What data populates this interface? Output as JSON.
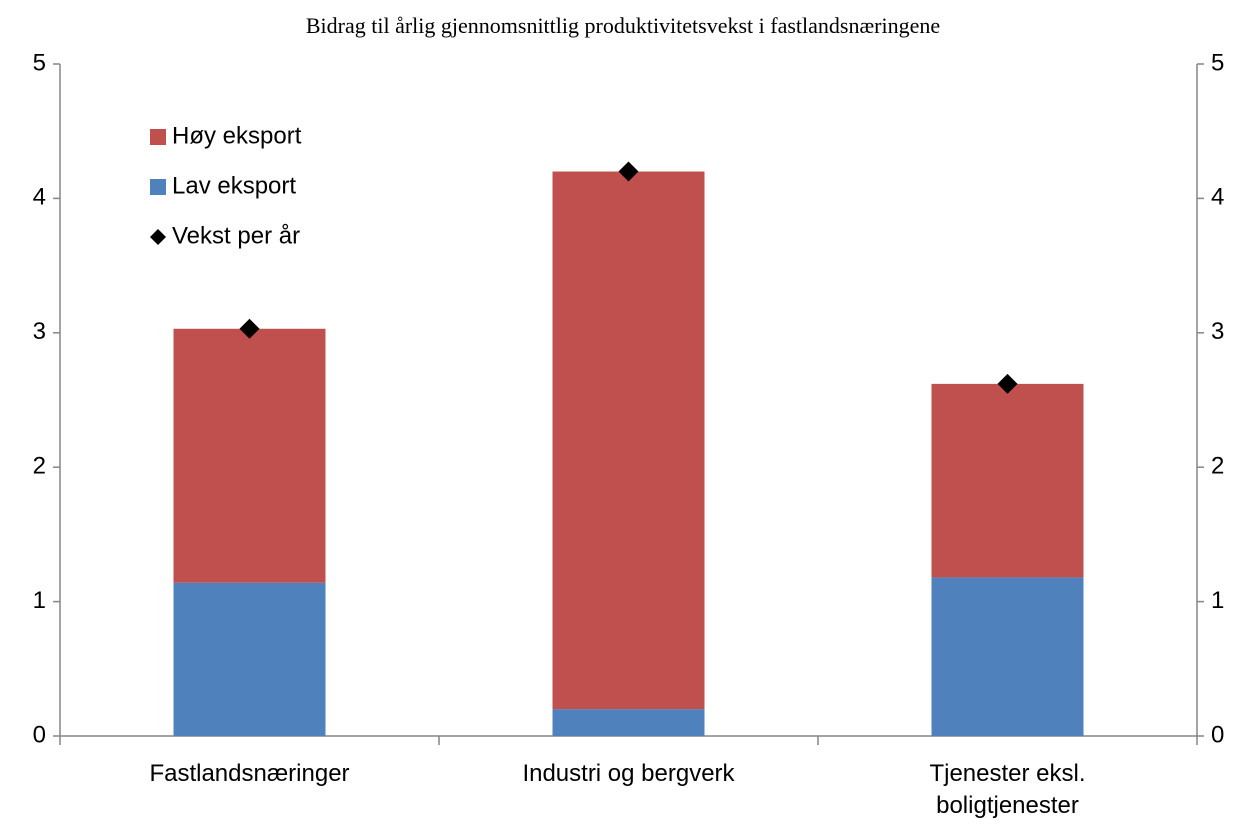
{
  "chart_data": {
    "type": "bar",
    "stacked": true,
    "title": "Bidrag til årlig gjennomsnittlig produktivitetsvekst i fastlandsnæringene",
    "categories": [
      "Fastlandsnæringer",
      "Industri og bergverk",
      "Tjenester eksl. boligtjenester"
    ],
    "series": [
      {
        "name": "Høy eksport",
        "color": "#c0504d",
        "values": [
          1.89,
          4.0,
          1.44
        ]
      },
      {
        "name": "Lav eksport",
        "color": "#4f81bd",
        "values": [
          1.14,
          0.2,
          1.18
        ]
      },
      {
        "name": "Vekst per år",
        "type": "scatter",
        "marker": "diamond",
        "color": "#000000",
        "values": [
          3.03,
          4.2,
          2.62
        ]
      }
    ],
    "stack_order": [
      1,
      0
    ],
    "ylim": [
      0,
      5
    ],
    "yticks": [
      0,
      1,
      2,
      3,
      4,
      5
    ],
    "y2lim": [
      0,
      5
    ],
    "y2ticks": [
      0,
      1,
      2,
      3,
      4,
      5
    ],
    "grid": false,
    "legend": "upper left"
  }
}
